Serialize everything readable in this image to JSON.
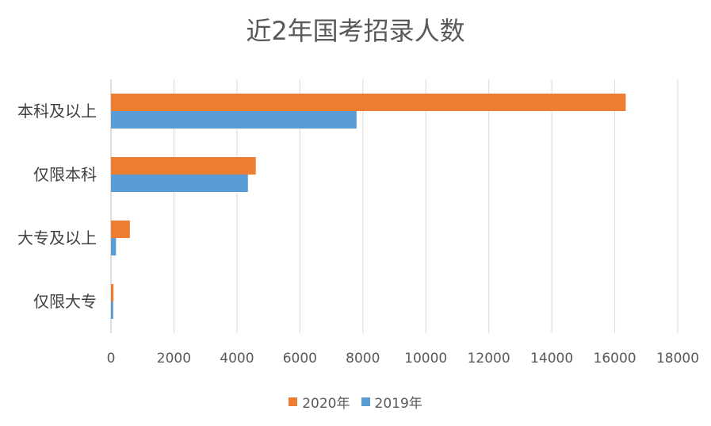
{
  "chart_data": {
    "type": "bar",
    "orientation": "horizontal",
    "title": "近2年国考招录人数",
    "categories": [
      "仅限大专",
      "大专及以上",
      "仅限本科",
      "本科及以上"
    ],
    "series": [
      {
        "name": "2020年",
        "color": "#ED7D31",
        "values": [
          80,
          600,
          4600,
          16350
        ]
      },
      {
        "name": "2019年",
        "color": "#5B9BD5",
        "values": [
          70,
          160,
          4350,
          7800
        ]
      }
    ],
    "xlim": [
      0,
      18000
    ],
    "xticks": [
      0,
      2000,
      4000,
      6000,
      8000,
      10000,
      12000,
      14000,
      16000,
      18000
    ],
    "grid": true,
    "legend_position": "bottom"
  }
}
